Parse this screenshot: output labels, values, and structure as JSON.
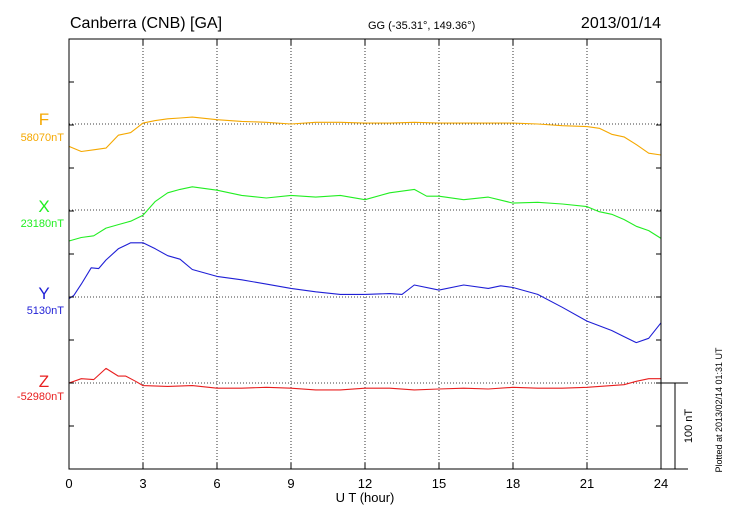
{
  "header": {
    "station": "Canberra (CNB)  [GA]",
    "coords": "GG (-35.31°, 149.36°)",
    "date": "2013/01/14"
  },
  "footer": {
    "plotted_note": "Plotted at 2013/02/14 01:31  UT"
  },
  "chart_data": {
    "type": "line",
    "xlabel": "U T (hour)",
    "ylabel": "",
    "xlim": [
      0,
      24
    ],
    "xticks": [
      0,
      3,
      6,
      9,
      12,
      15,
      18,
      21,
      24
    ],
    "xtick_labels": [
      "0",
      "3",
      "6",
      "9",
      "12",
      "15",
      "18",
      "21",
      "24"
    ],
    "grid": true,
    "scale_bar": {
      "label": "100 nT",
      "value_nT": 100
    },
    "series": [
      {
        "name": "F",
        "baseline_label": "58070nT",
        "baseline_nT": 58070,
        "color": "#f5a800",
        "x": [
          0,
          0.5,
          1.0,
          1.5,
          2.0,
          2.5,
          3.0,
          3.5,
          4.0,
          4.5,
          5.0,
          6.0,
          7.0,
          8.0,
          9.0,
          10.0,
          11.0,
          12.0,
          13.0,
          14.0,
          15.0,
          16.0,
          17.0,
          18.0,
          19.0,
          20.0,
          21.0,
          21.5,
          22.0,
          22.5,
          23.0,
          23.5,
          24.0
        ],
        "y": [
          -26,
          -32,
          -30,
          -28,
          -13,
          -10,
          1,
          4,
          6,
          7,
          8,
          5,
          3,
          2,
          0,
          2,
          2,
          1,
          1,
          2,
          1,
          1,
          1,
          1,
          0,
          -2,
          -3,
          -5,
          -12,
          -15,
          -24,
          -34,
          -36
        ]
      },
      {
        "name": "X",
        "baseline_label": "23180nT",
        "baseline_nT": 23180,
        "color": "#22ee22",
        "x": [
          0,
          0.5,
          1.0,
          1.5,
          2.0,
          2.5,
          3.0,
          3.5,
          4.0,
          4.5,
          5.0,
          6.0,
          7.0,
          8.0,
          9.0,
          10.0,
          11.0,
          12.0,
          13.0,
          14.0,
          14.5,
          15.0,
          16.0,
          17.0,
          18.0,
          19.0,
          20.0,
          21.0,
          21.5,
          22.0,
          22.5,
          23.0,
          23.5,
          24.0
        ],
        "y": [
          -36,
          -32,
          -30,
          -21,
          -17,
          -13,
          -6,
          10,
          20,
          24,
          27,
          23,
          17,
          14,
          17,
          15,
          17,
          12,
          20,
          24,
          16,
          16,
          12,
          15,
          8,
          9,
          7,
          4,
          -2,
          -5,
          -11,
          -19,
          -24,
          -33
        ]
      },
      {
        "name": "Y",
        "baseline_label": "5130nT",
        "baseline_nT": 5130,
        "color": "#1f1fd6",
        "x": [
          0,
          0.2,
          0.5,
          0.9,
          1.2,
          1.5,
          2.0,
          2.5,
          3.0,
          3.5,
          4.0,
          4.5,
          5.0,
          6.0,
          7.0,
          8.0,
          9.0,
          10.0,
          11.0,
          12.0,
          13.0,
          13.5,
          14.0,
          15.0,
          16.0,
          17.0,
          17.5,
          18.0,
          19.0,
          20.0,
          21.0,
          22.0,
          22.5,
          23.0,
          23.5,
          24.0
        ],
        "y": [
          -2,
          2,
          15,
          34,
          33,
          43,
          56,
          63,
          63,
          56,
          48,
          44,
          32,
          24,
          20,
          15,
          10,
          6,
          3,
          3,
          4,
          3,
          14,
          8,
          14,
          10,
          13,
          11,
          3,
          -12,
          -28,
          -39,
          -46,
          -53,
          -48,
          -30
        ]
      },
      {
        "name": "Z",
        "baseline_label": "-52980nT",
        "baseline_nT": -52980,
        "color": "#e81f1f",
        "x": [
          0,
          0.5,
          1.0,
          1.5,
          2.0,
          2.3,
          2.7,
          3.0,
          4.0,
          5.0,
          6.0,
          7.0,
          8.0,
          9.0,
          10.0,
          11.0,
          12.0,
          13.0,
          14.0,
          15.0,
          16.0,
          17.0,
          18.0,
          19.0,
          20.0,
          21.0,
          21.5,
          22.0,
          22.5,
          23.0,
          23.5,
          24.0
        ],
        "y": [
          0,
          5,
          4,
          17,
          8,
          8,
          2,
          -3,
          -4,
          -3,
          -6,
          -6,
          -5,
          -6,
          -8,
          -8,
          -6,
          -6,
          -8,
          -7,
          -6,
          -7,
          -5,
          -6,
          -6,
          -5,
          -4,
          -3,
          -2,
          2,
          5,
          5
        ]
      }
    ]
  }
}
